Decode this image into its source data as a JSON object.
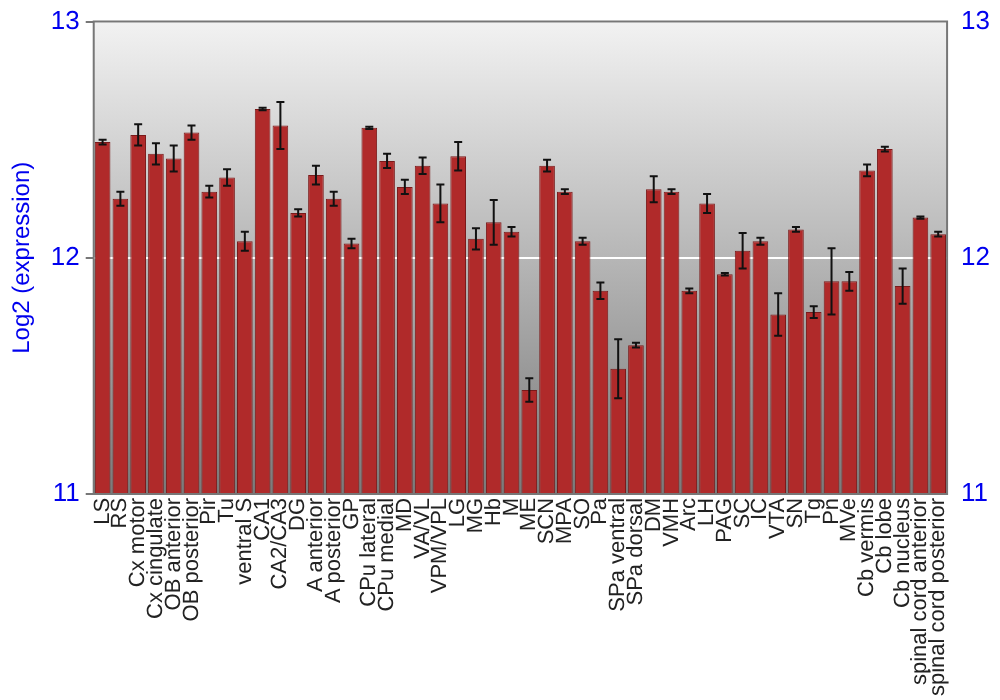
{
  "chart_data": {
    "type": "bar",
    "ylabel": "Log2 (expression)",
    "categories": [
      "LS",
      "RS",
      "Cx motor",
      "Cx cingulate",
      "OB anterior",
      "OB posterior",
      "Pir",
      "Tu",
      "ventral S",
      "CA1",
      "CA2/CA3",
      "DG",
      "A anterior",
      "A posterior",
      "GP",
      "CPu lateral",
      "CPu medial",
      "MD",
      "VA/VL",
      "VPM/VPL",
      "LG",
      "MG",
      "Hb",
      "M",
      "ME",
      "SCN",
      "MPA",
      "SO",
      "Pa",
      "SPa ventral",
      "SPa dorsal",
      "DM",
      "VMH",
      "Arc",
      "LH",
      "PAG",
      "SC",
      "IC",
      "VTA",
      "SN",
      "Tg",
      "Pn",
      "MVe",
      "Cb vermis",
      "Cb lobe",
      "Cb nucleus",
      "spinal cord anterior",
      "spinal cord posterior"
    ],
    "values": [
      12.49,
      12.25,
      12.52,
      12.44,
      12.42,
      12.53,
      12.28,
      12.34,
      12.07,
      12.63,
      12.56,
      12.19,
      12.35,
      12.25,
      12.06,
      12.55,
      12.41,
      12.3,
      12.39,
      12.23,
      12.43,
      12.08,
      12.15,
      12.11,
      11.44,
      12.39,
      12.28,
      12.07,
      11.86,
      11.53,
      11.63,
      12.29,
      12.28,
      11.86,
      12.23,
      11.93,
      12.03,
      12.07,
      11.76,
      12.12,
      11.77,
      11.9,
      11.9,
      12.37,
      12.46,
      11.88,
      12.17,
      12.1
    ],
    "errors": [
      0.01,
      0.03,
      0.045,
      0.045,
      0.055,
      0.03,
      0.025,
      0.035,
      0.04,
      0.005,
      0.1,
      0.015,
      0.04,
      0.03,
      0.02,
      0.005,
      0.03,
      0.03,
      0.035,
      0.08,
      0.06,
      0.045,
      0.095,
      0.02,
      0.05,
      0.025,
      0.01,
      0.015,
      0.035,
      0.125,
      0.01,
      0.055,
      0.01,
      0.01,
      0.04,
      0.005,
      0.075,
      0.015,
      0.09,
      0.01,
      0.025,
      0.14,
      0.04,
      0.025,
      0.01,
      0.075,
      0.005,
      0.01
    ],
    "color": "#b02a2a",
    "ylim": [
      11,
      13
    ],
    "yticks": [
      11,
      12,
      13
    ],
    "y2lim": [
      11,
      13
    ],
    "y2ticks": [
      11,
      12,
      13
    ],
    "grid": "y",
    "legend": false
  }
}
